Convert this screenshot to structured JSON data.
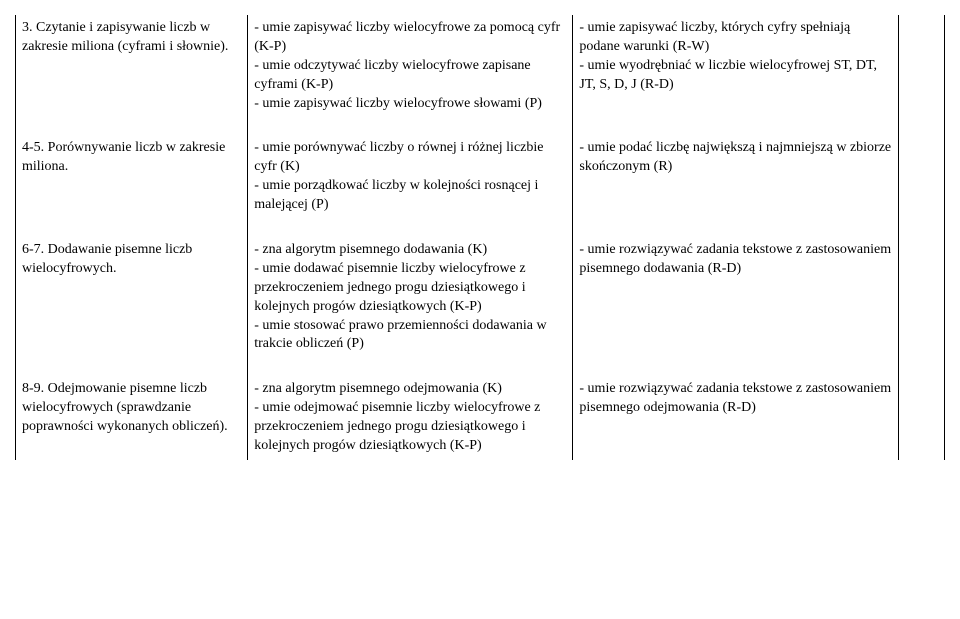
{
  "rows": [
    {
      "c1": "3. Czytanie i zapisywanie liczb w zakresie miliona (cyframi i słownie).",
      "c2": "- umie zapisywać liczby wielocyfrowe za pomocą cyfr (K-P)\n- umie odczytywać liczby wielocyfrowe zapisane cyframi (K-P)\n- umie zapisywać liczby wielocyfrowe słowami (P)",
      "c3": "- umie zapisywać liczby, których cyfry spełniają podane warunki (R-W)\n- umie wyodrębniać w liczbie wielocyfrowej ST, DT, JT, S, D, J (R-D)"
    },
    {
      "c1": "4-5. Porównywanie liczb w zakresie miliona.",
      "c2": "- umie porównywać liczby o równej i różnej liczbie cyfr (K)\n- umie porządkować liczby w kolejności rosnącej i malejącej (P)",
      "c3": "- umie podać liczbę największą i najmniejszą  w zbiorze skończonym (R)"
    },
    {
      "c1": "6-7. Dodawanie pisemne liczb wielocyfrowych.",
      "c2": "- zna algorytm pisemnego dodawania (K)\n- umie dodawać pisemnie liczby wielocyfrowe z przekroczeniem jednego progu dziesiątkowego i kolejnych progów dziesiątkowych (K-P)\n- umie stosować prawo przemienności dodawania w trakcie obliczeń (P)",
      "c3": "- umie rozwiązywać zadania tekstowe z zastosowaniem pisemnego dodawania (R-D)"
    },
    {
      "c1": "8-9. Odejmowanie pisemne liczb wielocyfrowych (sprawdzanie poprawności wykonanych obliczeń).",
      "c2": "- zna algorytm pisemnego odejmowania (K)\n- umie odejmować pisemnie liczby wielocyfrowe z przekroczeniem jednego progu dziesiątkowego i kolejnych progów dziesiątkowych (K-P)",
      "c3": "- umie rozwiązywać zadania tekstowe z zastosowaniem pisemnego odejmowania (R-D)"
    }
  ]
}
